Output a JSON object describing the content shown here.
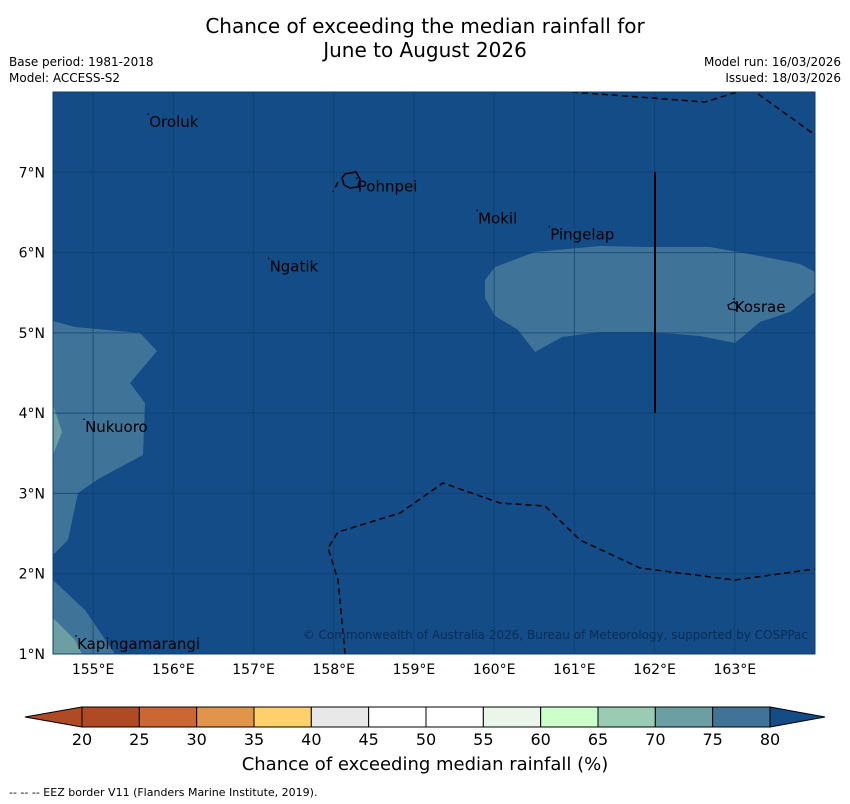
{
  "title": {
    "line1": "Chance of exceeding the median rainfall for",
    "line2": "June to August 2026"
  },
  "meta": {
    "base_period": "Base period: 1981-2018",
    "model": "Model: ACCESS-S2",
    "model_run": "Model run: 16/03/2026",
    "issued": "Issued: 18/03/2026"
  },
  "map": {
    "lon_range": [
      154.5,
      164.0
    ],
    "lat_range": [
      1.0,
      8.0
    ],
    "lon_ticks": [
      "155°E",
      "156°E",
      "157°E",
      "158°E",
      "159°E",
      "160°E",
      "161°E",
      "162°E",
      "163°E"
    ],
    "lat_ticks": [
      "1°N",
      "2°N",
      "3°N",
      "4°N",
      "5°N",
      "6°N",
      "7°N"
    ],
    "copyright": "© Commonwealth of Australia 2026, Bureau of Meteorology, supported by COSPPac",
    "places": [
      {
        "name": "Oroluk",
        "lon": 155.7,
        "lat": 7.6
      },
      {
        "name": "Pohnpei",
        "lon": 158.3,
        "lat": 6.8
      },
      {
        "name": "Mokil",
        "lon": 159.8,
        "lat": 6.4
      },
      {
        "name": "Pingelap",
        "lon": 160.7,
        "lat": 6.2
      },
      {
        "name": "Ngatik",
        "lon": 157.2,
        "lat": 5.8
      },
      {
        "name": "Kosrae",
        "lon": 163.0,
        "lat": 5.3
      },
      {
        "name": "Nukuoro",
        "lon": 154.9,
        "lat": 3.8
      },
      {
        "name": "Kapingamarangi",
        "lon": 154.8,
        "lat": 1.1
      }
    ],
    "background_category": "75-80",
    "regions": [
      {
        "category": "70-75",
        "description": "band north of Kosrae",
        "lon_min": 160.4,
        "lon_max": 164.0,
        "lat_min": 4.8,
        "lat_max": 6.1
      },
      {
        "category": "70-75",
        "description": "western edge near Nukuoro",
        "lon_min": 154.5,
        "lon_max": 155.6,
        "lat_min": 1.3,
        "lat_max": 5.2
      }
    ]
  },
  "colorbar": {
    "label": "Chance of exceeding median rainfall (%)",
    "ticks": [
      "20",
      "25",
      "30",
      "35",
      "40",
      "45",
      "50",
      "55",
      "60",
      "65",
      "70",
      "75",
      "80"
    ],
    "colors": [
      "#b04a25",
      "#cc6633",
      "#e0954a",
      "#fdd06a",
      "#e8e8e8",
      "#ffffff",
      "#ffffff",
      "#eaf6ea",
      "#ccffcc",
      "#99ccb3",
      "#6b9fa3",
      "#3f7398",
      "#134c86"
    ]
  },
  "footnote": "-- -- -- EEZ border V11 (Flanders Marine Institute, 2019)."
}
